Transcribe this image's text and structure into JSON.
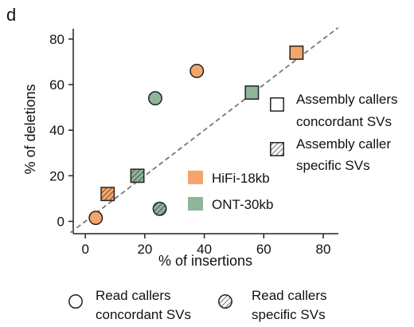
{
  "panel_label": "d",
  "chart_data": {
    "type": "scatter",
    "xlabel": "% of insertions",
    "ylabel": "% of deletions",
    "xlim": [
      -5,
      85
    ],
    "ylim": [
      -5,
      85
    ],
    "xticks": [
      0,
      20,
      40,
      60,
      80
    ],
    "yticks": [
      0,
      20,
      40,
      60,
      80
    ],
    "grid": false,
    "reference_line": "diagonal (y = x), dashed grey",
    "colors": {
      "HiFi-18kb": "#f4a66a",
      "ONT-30kb": "#8fb59b",
      "edge": "#222222",
      "diagonal": "#777777"
    },
    "series": [
      {
        "name": "HiFi-18kb",
        "points": [
          {
            "x": 3.5,
            "y": 1.5,
            "category": "Read callers concordant SVs",
            "marker": "circle",
            "fill": "solid"
          },
          {
            "x": 37.5,
            "y": 66,
            "category": "Read callers concordant SVs",
            "marker": "circle",
            "fill": "solid"
          },
          {
            "x": 7.5,
            "y": 12,
            "category": "Assembly caller specific SVs",
            "marker": "square",
            "fill": "hatched"
          },
          {
            "x": 71,
            "y": 74,
            "category": "Assembly callers concordant SVs",
            "marker": "square",
            "fill": "solid"
          }
        ]
      },
      {
        "name": "ONT-30kb",
        "points": [
          {
            "x": 23.5,
            "y": 54,
            "category": "Read callers concordant SVs",
            "marker": "circle",
            "fill": "solid"
          },
          {
            "x": 25,
            "y": 5.5,
            "category": "Read callers specific SVs",
            "marker": "circle",
            "fill": "hatched"
          },
          {
            "x": 17.5,
            "y": 20,
            "category": "Assembly caller specific SVs",
            "marker": "square",
            "fill": "hatched"
          },
          {
            "x": 56,
            "y": 56.5,
            "category": "Assembly callers concordant SVs",
            "marker": "square",
            "fill": "solid"
          }
        ]
      }
    ],
    "legend_colors": [
      {
        "label": "HiFi-18kb",
        "color": "#f4a66a"
      },
      {
        "label": "ONT-30kb",
        "color": "#8fb59b"
      }
    ],
    "legend_shapes": [
      {
        "lines": [
          "Assembly callers",
          "concordant SVs"
        ],
        "marker": "square",
        "fill": "open"
      },
      {
        "lines": [
          "Assembly caller",
          "specific SVs"
        ],
        "marker": "square",
        "fill": "hatched"
      },
      {
        "lines": [
          "Read callers",
          "concordant SVs"
        ],
        "marker": "circle",
        "fill": "open"
      },
      {
        "lines": [
          "Read callers",
          "specific SVs"
        ],
        "marker": "circle",
        "fill": "hatched"
      }
    ]
  }
}
